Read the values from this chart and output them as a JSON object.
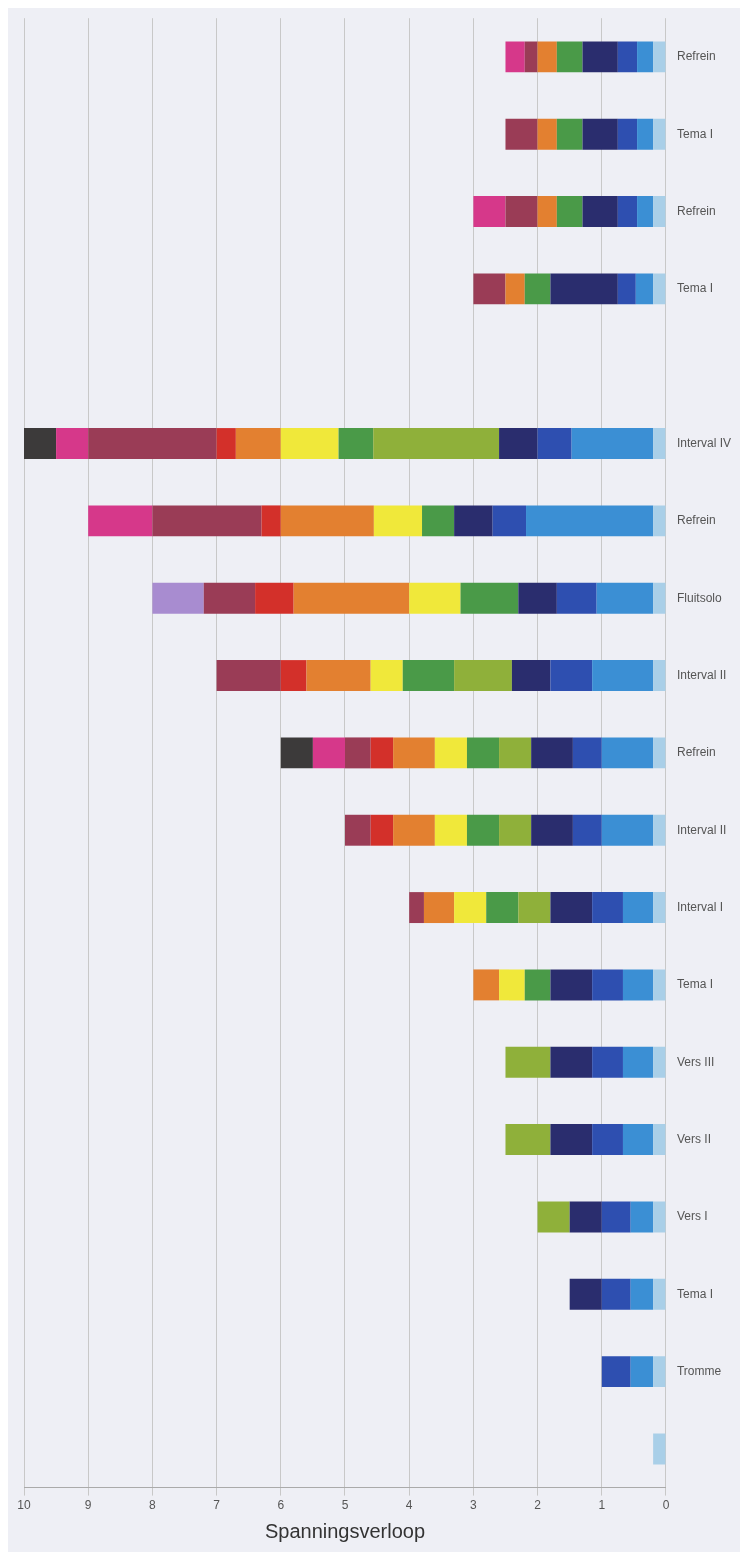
{
  "chart_data": {
    "type": "bar",
    "orientation": "horizontal",
    "xlabel": "Spanningsverloop",
    "categories": [
      "Refrein",
      "Tema I",
      "Refrein",
      "Tema I",
      null,
      "Interval IV",
      "Refrein",
      "Fluitsolo",
      "Interval II",
      "Refrein",
      "Interval II",
      "Interval I",
      "Tema I",
      "Vers III",
      "Vers II",
      "Vers I",
      "Tema I",
      "Tromme",
      null
    ],
    "stacked": true,
    "series": [
      {
        "color": "#a9cfe8",
        "values": [
          0.2,
          0.2,
          0.2,
          0.2,
          null,
          0.2,
          0.2,
          0.2,
          0.2,
          0.2,
          0.2,
          0.2,
          0.2,
          0.2,
          0.2,
          0.2,
          0.2,
          0.2,
          0.2
        ]
      },
      {
        "color": "#3b8fd4",
        "values": [
          0.25,
          0.25,
          0.25,
          0.27,
          null,
          1.27,
          1.98,
          0.88,
          0.95,
          0.8,
          0.8,
          0.47,
          0.47,
          0.47,
          0.47,
          0.35,
          0.35,
          0.35,
          null
        ]
      },
      {
        "color": "#2e4fb0",
        "values": [
          0.3,
          0.3,
          0.3,
          0.28,
          null,
          0.53,
          0.52,
          0.62,
          0.65,
          0.45,
          0.45,
          0.48,
          0.48,
          0.48,
          0.48,
          0.45,
          0.45,
          0.45,
          null
        ]
      },
      {
        "color": "#2a2d6e",
        "values": [
          0.55,
          0.55,
          0.55,
          1.05,
          null,
          0.6,
          0.6,
          0.6,
          0.6,
          0.65,
          0.65,
          0.65,
          0.65,
          0.65,
          0.65,
          0.5,
          0.5,
          null,
          null
        ]
      },
      {
        "color": "#8fb03a",
        "values": [
          null,
          null,
          null,
          null,
          null,
          1.96,
          null,
          null,
          0.9,
          0.5,
          0.5,
          0.5,
          null,
          0.7,
          0.7,
          0.5,
          null,
          null,
          null
        ]
      },
      {
        "color": "#4a9a48",
        "values": [
          0.4,
          0.4,
          0.4,
          0.4,
          null,
          0.54,
          0.5,
          0.9,
          0.8,
          0.5,
          0.5,
          0.5,
          0.4,
          null,
          null,
          null,
          null,
          null,
          null
        ]
      },
      {
        "color": "#f0e83a",
        "values": [
          null,
          null,
          null,
          null,
          null,
          0.9,
          0.75,
          0.8,
          0.5,
          0.5,
          0.5,
          0.5,
          0.4,
          null,
          null,
          null,
          null,
          null,
          null
        ]
      },
      {
        "color": "#e38030",
        "values": [
          0.3,
          0.3,
          0.3,
          0.3,
          null,
          0.7,
          1.45,
          1.8,
          1.0,
          0.65,
          0.65,
          0.47,
          0.4,
          null,
          null,
          null,
          null,
          null,
          null
        ]
      },
      {
        "color": "#d3302a",
        "values": [
          null,
          null,
          null,
          null,
          null,
          0.3,
          0.3,
          0.6,
          0.4,
          0.35,
          0.35,
          null,
          null,
          null,
          null,
          null,
          null,
          null,
          null
        ]
      },
      {
        "color": "#9a3c56",
        "values": [
          0.2,
          0.5,
          0.5,
          0.5,
          null,
          2.0,
          1.7,
          0.8,
          1.0,
          0.4,
          0.4,
          0.23,
          null,
          null,
          null,
          null,
          null,
          null,
          null
        ]
      },
      {
        "color": "#d6388a",
        "values": [
          0.3,
          null,
          0.5,
          null,
          null,
          0.5,
          1.0,
          null,
          null,
          0.5,
          null,
          null,
          null,
          null,
          null,
          null,
          null,
          null,
          null
        ]
      },
      {
        "color": "#a88cd0",
        "values": [
          null,
          null,
          null,
          null,
          null,
          null,
          null,
          0.8,
          null,
          null,
          null,
          null,
          null,
          null,
          null,
          null,
          null,
          null,
          null
        ]
      },
      {
        "color": "#3c3a3a",
        "values": [
          null,
          null,
          null,
          null,
          null,
          0.5,
          null,
          null,
          null,
          0.5,
          null,
          null,
          null,
          null,
          null,
          null,
          null,
          null,
          null
        ]
      }
    ],
    "xlim": [
      10,
      0
    ],
    "xticks": [
      0,
      1,
      2,
      3,
      4,
      5,
      6,
      7,
      8,
      9,
      10
    ],
    "grid": "x"
  }
}
